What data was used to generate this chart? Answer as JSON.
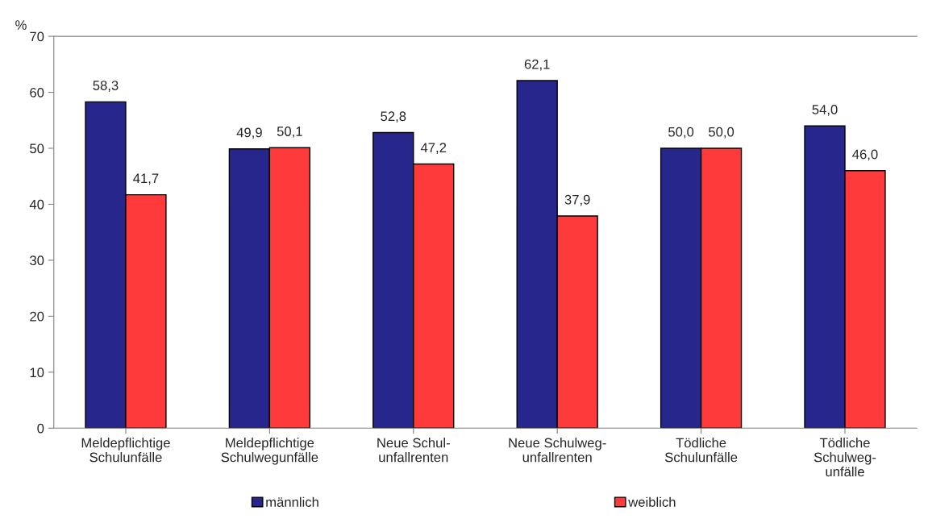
{
  "chart_data": {
    "type": "bar",
    "ylabel": "%",
    "categories": [
      "Meldepflichtige\nSchulunfälle",
      "Meldepflichtige\nSchulwegunfälle",
      "Neue Schul-\nunfallrenten",
      "Neue Schulweg-\nunfallrenten",
      "Tödliche\nSchulunfälle",
      "Tödliche\nSchulweg-\nunfälle"
    ],
    "series": [
      {
        "name": "männlich",
        "color": "#26268c",
        "values": [
          58.3,
          49.9,
          52.8,
          62.1,
          50.0,
          54.0
        ],
        "value_labels": [
          "58,3",
          "49,9",
          "52,8",
          "62,1",
          "50,0",
          "54,0"
        ]
      },
      {
        "name": "weiblich",
        "color": "#ff3a3a",
        "values": [
          41.7,
          50.1,
          47.2,
          37.9,
          50.0,
          46.0
        ],
        "value_labels": [
          "41,7",
          "50,1",
          "47,2",
          "37,9",
          "50,0",
          "46,0"
        ]
      }
    ],
    "ylim": [
      0,
      70
    ],
    "yticks": [
      0,
      10,
      20,
      30,
      40,
      50,
      60,
      70
    ],
    "grid": false,
    "legend": "bottom"
  }
}
